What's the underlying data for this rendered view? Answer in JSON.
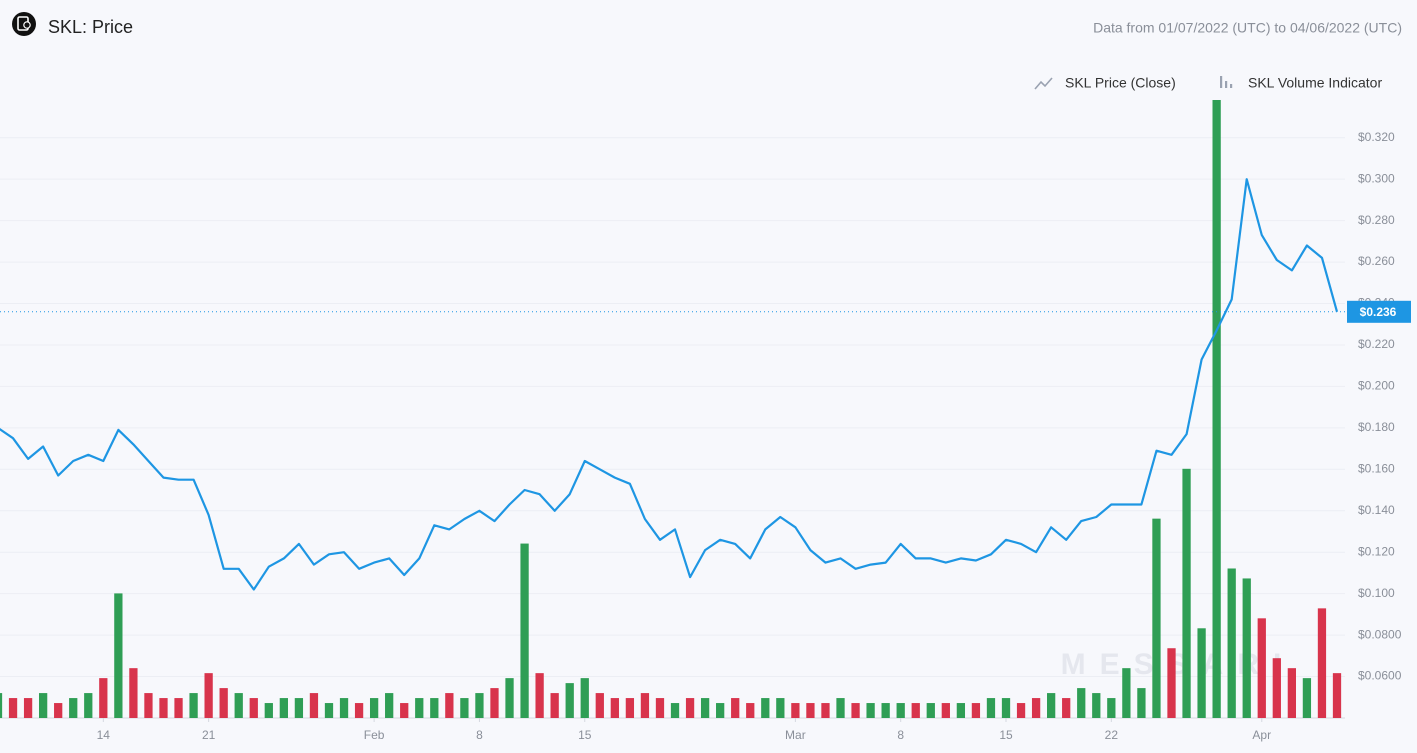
{
  "chart_data": {
    "type": "line",
    "title": "SKL: Price",
    "subtitle": "Data from 01/07/2022 (UTC) to 04/06/2022 (UTC)",
    "watermark": "MESSARI",
    "xlim": [
      "2022-01-07",
      "2022-04-06"
    ],
    "xticks": [
      {
        "value": "2022-01-14",
        "label": "14"
      },
      {
        "value": "2022-01-21",
        "label": "21"
      },
      {
        "value": "2022-02-01",
        "label": "Feb"
      },
      {
        "value": "2022-02-08",
        "label": "8"
      },
      {
        "value": "2022-02-15",
        "label": "15"
      },
      {
        "value": "2022-03-01",
        "label": "Mar"
      },
      {
        "value": "2022-03-08",
        "label": "8"
      },
      {
        "value": "2022-03-15",
        "label": "15"
      },
      {
        "value": "2022-03-22",
        "label": "22"
      },
      {
        "value": "2022-04-01",
        "label": "Apr"
      }
    ],
    "ylim": [
      0.04,
      0.3382
    ],
    "yticks": [
      {
        "value": 0.06,
        "label": "$0.0600"
      },
      {
        "value": 0.08,
        "label": "$0.0800"
      },
      {
        "value": 0.1,
        "label": "$0.100"
      },
      {
        "value": 0.12,
        "label": "$0.120"
      },
      {
        "value": 0.14,
        "label": "$0.140"
      },
      {
        "value": 0.16,
        "label": "$0.160"
      },
      {
        "value": 0.18,
        "label": "$0.180"
      },
      {
        "value": 0.2,
        "label": "$0.200"
      },
      {
        "value": 0.22,
        "label": "$0.220"
      },
      {
        "value": 0.24,
        "label": "$0.240"
      },
      {
        "value": 0.26,
        "label": "$0.260"
      },
      {
        "value": 0.28,
        "label": "$0.280"
      },
      {
        "value": 0.3,
        "label": "$0.300"
      },
      {
        "value": 0.32,
        "label": "$0.320"
      }
    ],
    "y2lim": [
      0,
      124
    ],
    "grid": true,
    "last_price": {
      "value": 0.236,
      "label": "$0.236"
    },
    "series": [
      {
        "name": "SKL Price (Close)",
        "color": "#1e96e3",
        "values": [
          0.18,
          0.175,
          0.165,
          0.171,
          0.157,
          0.164,
          0.167,
          0.164,
          0.179,
          0.172,
          0.164,
          0.156,
          0.155,
          0.155,
          0.138,
          0.112,
          0.112,
          0.102,
          0.113,
          0.117,
          0.124,
          0.114,
          0.119,
          0.12,
          0.112,
          0.115,
          0.117,
          0.109,
          0.117,
          0.133,
          0.131,
          0.136,
          0.14,
          0.135,
          0.143,
          0.15,
          0.148,
          0.14,
          0.148,
          0.164,
          0.16,
          0.156,
          0.153,
          0.136,
          0.126,
          0.131,
          0.108,
          0.121,
          0.126,
          0.124,
          0.117,
          0.131,
          0.137,
          0.132,
          0.121,
          0.115,
          0.117,
          0.112,
          0.114,
          0.115,
          0.124,
          0.117,
          0.117,
          0.115,
          0.117,
          0.116,
          0.119,
          0.126,
          0.124,
          0.12,
          0.132,
          0.126,
          0.135,
          0.137,
          0.143,
          0.143,
          0.143,
          0.169,
          0.167,
          0.177,
          0.213,
          0.227,
          0.242,
          0.3,
          0.273,
          0.261,
          0.256,
          0.268,
          0.262,
          0.236
        ]
      },
      {
        "name": "SKL Volume Indicator",
        "axis": "y2",
        "up_color": "#2f9e55",
        "down_color": "#d8344c",
        "values": [
          5,
          4,
          4,
          5,
          3,
          4,
          5,
          8,
          25,
          10,
          5,
          4,
          4,
          5,
          9,
          6,
          5,
          4,
          3,
          4,
          4,
          5,
          3,
          4,
          3,
          4,
          5,
          3,
          4,
          4,
          5,
          4,
          5,
          6,
          8,
          35,
          9,
          5,
          7,
          8,
          5,
          4,
          4,
          5,
          4,
          3,
          4,
          4,
          3,
          4,
          3,
          4,
          4,
          3,
          3,
          3,
          4,
          3,
          3,
          3,
          3,
          3,
          3,
          3,
          3,
          3,
          4,
          4,
          3,
          4,
          5,
          4,
          6,
          5,
          4,
          10,
          6,
          40,
          14,
          50,
          18,
          124,
          30,
          28,
          20,
          12,
          10,
          8,
          22,
          9
        ]
      }
    ]
  }
}
